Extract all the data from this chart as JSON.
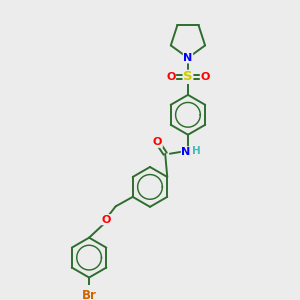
{
  "background_color": "#ececec",
  "bond_color": "#2d6e2d",
  "atom_colors": {
    "N": "#0000ff",
    "O": "#ff0000",
    "S": "#cccc00",
    "Br": "#cc6600",
    "C": "#2d6e2d",
    "H": "#44bbbb"
  },
  "figsize": [
    3.0,
    3.0
  ],
  "dpi": 100,
  "ring_r": 21,
  "lw": 1.4
}
